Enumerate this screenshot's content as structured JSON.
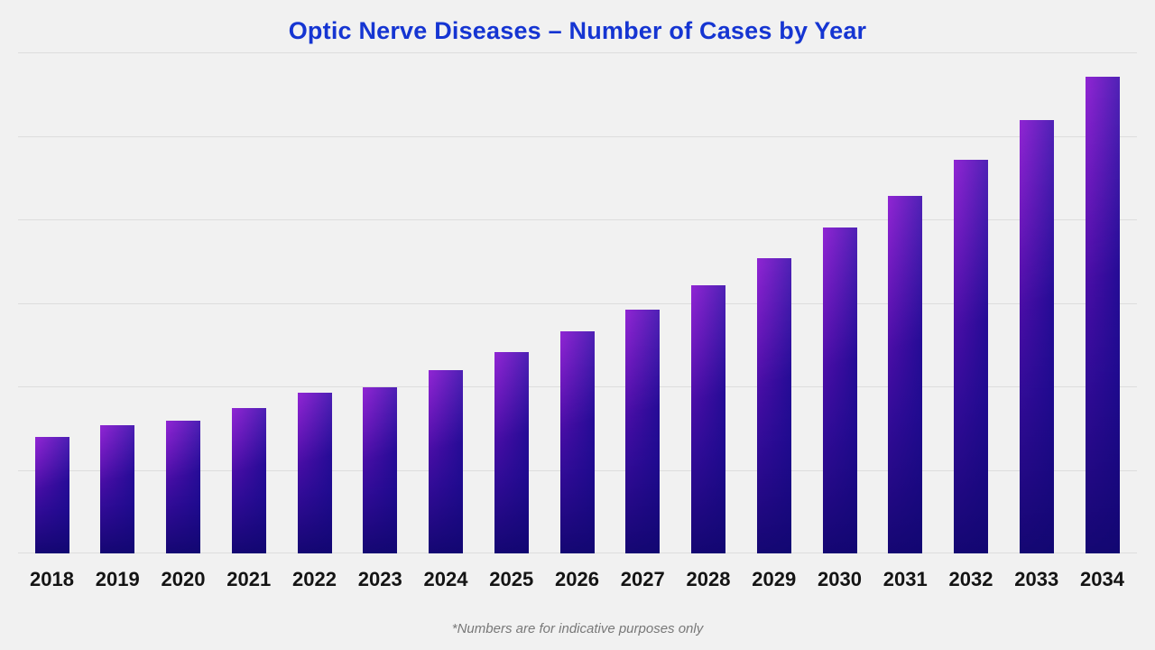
{
  "title": "Optic Nerve Diseases – Number of Cases by Year",
  "footnote": "*Numbers are for indicative purposes only",
  "colors": {
    "title": "#1535d2",
    "background": "#f1f1f1",
    "gridline": "#dddddd",
    "bar_purple": "#7d12c6",
    "bar_blue": "#1a0a8e",
    "axis_label": "#141414",
    "footnote": "#787878"
  },
  "chart_data": {
    "type": "bar",
    "title": "Optic Nerve Diseases – Number of Cases by Year",
    "categories": [
      "2018",
      "2019",
      "2020",
      "2021",
      "2022",
      "2023",
      "2024",
      "2025",
      "2026",
      "2027",
      "2028",
      "2029",
      "2030",
      "2031",
      "2032",
      "2033",
      "2034"
    ],
    "values": [
      700,
      770,
      795,
      870,
      960,
      995,
      1095,
      1205,
      1330,
      1460,
      1605,
      1770,
      1950,
      2140,
      2355,
      2595,
      2855
    ],
    "values_estimated": true,
    "xlabel": "",
    "ylabel": "",
    "ylim": [
      0,
      3000
    ],
    "gridline_interval": 500,
    "y_axis_labels_visible": false,
    "grid": "horizontal",
    "legend": "none",
    "annotation": "*Numbers are for indicative purposes only",
    "bar_gradient": [
      "#7d12c6",
      "#1a0a8e"
    ]
  }
}
